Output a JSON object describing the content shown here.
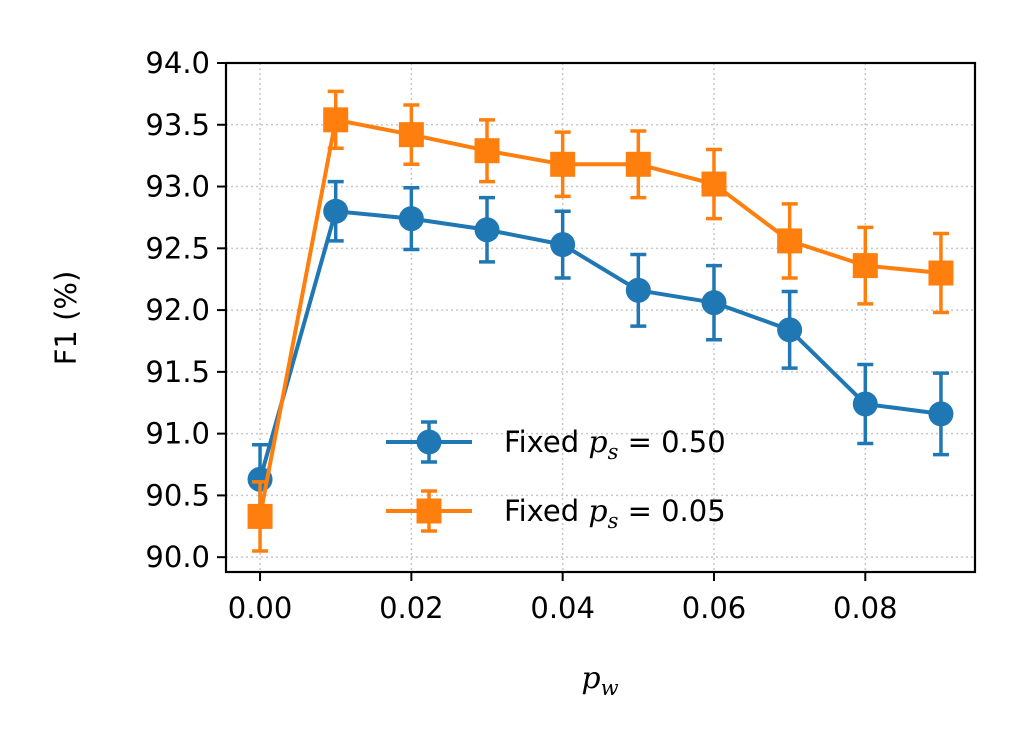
{
  "chart_data": {
    "type": "line",
    "title": "",
    "xlabel_base": "p",
    "xlabel_sub": "w",
    "ylabel": "F1 (%)",
    "xlim": [
      -0.0045,
      0.0945
    ],
    "ylim": [
      89.88,
      94.0
    ],
    "xticks": [
      0.0,
      0.02,
      0.04,
      0.06,
      0.08
    ],
    "xtick_labels": [
      "0.00",
      "0.02",
      "0.04",
      "0.06",
      "0.08"
    ],
    "yticks": [
      90.0,
      90.5,
      91.0,
      91.5,
      92.0,
      92.5,
      93.0,
      93.5,
      94.0
    ],
    "ytick_labels": [
      "90.0",
      "90.5",
      "91.0",
      "91.5",
      "92.0",
      "92.5",
      "93.0",
      "93.5",
      "94.0"
    ],
    "grid": true,
    "legend_position": "lower-center",
    "x": [
      0.0,
      0.01,
      0.02,
      0.03,
      0.04,
      0.05,
      0.06,
      0.07,
      0.08,
      0.09
    ],
    "series": [
      {
        "name": "Fixed p_s = 0.50",
        "legend_prefix": "Fixed ",
        "legend_var": "p",
        "legend_sub": "s",
        "legend_value": " = 0.50",
        "color": "#1f77b4",
        "marker": "circle",
        "values": [
          90.63,
          92.8,
          92.74,
          92.65,
          92.53,
          92.16,
          92.06,
          91.84,
          91.24,
          91.16
        ],
        "errors": [
          0.28,
          0.24,
          0.25,
          0.26,
          0.27,
          0.29,
          0.3,
          0.31,
          0.32,
          0.33
        ]
      },
      {
        "name": "Fixed p_s = 0.05",
        "legend_prefix": "Fixed ",
        "legend_var": "p",
        "legend_sub": "s",
        "legend_value": " = 0.05",
        "color": "#ff7f0e",
        "marker": "square",
        "values": [
          90.33,
          93.54,
          93.42,
          93.29,
          93.18,
          93.18,
          93.02,
          92.56,
          92.36,
          92.3
        ],
        "errors": [
          0.28,
          0.23,
          0.24,
          0.25,
          0.26,
          0.27,
          0.28,
          0.3,
          0.31,
          0.32
        ]
      }
    ]
  }
}
